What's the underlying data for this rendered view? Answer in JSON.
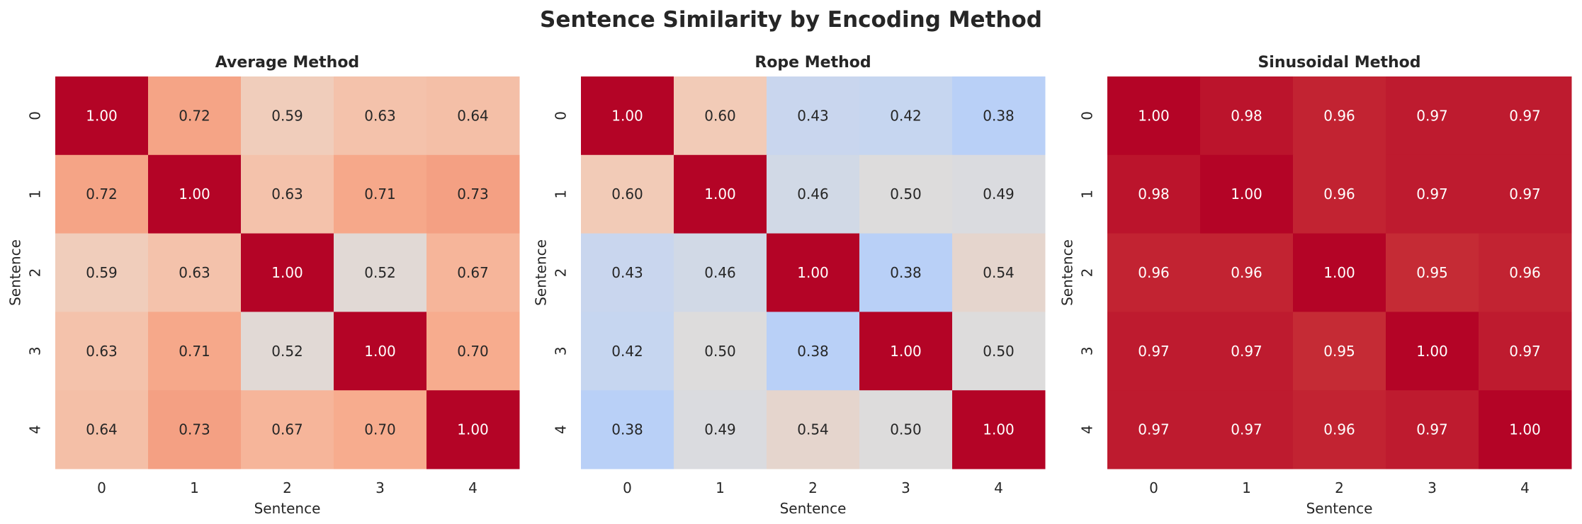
{
  "title": "Sentence Similarity by Encoding Method",
  "colormap": "coolwarm",
  "color_range": [
    0,
    1
  ],
  "chart_data": [
    {
      "type": "heatmap",
      "title": "Average Method",
      "xlabel": "Sentence",
      "ylabel": "Sentence",
      "x_ticks": [
        "0",
        "1",
        "2",
        "3",
        "4"
      ],
      "y_ticks": [
        "0",
        "1",
        "2",
        "3",
        "4"
      ],
      "values": [
        [
          1.0,
          0.72,
          0.59,
          0.63,
          0.64
        ],
        [
          0.72,
          1.0,
          0.63,
          0.71,
          0.73
        ],
        [
          0.59,
          0.63,
          1.0,
          0.52,
          0.67
        ],
        [
          0.63,
          0.71,
          0.52,
          1.0,
          0.7
        ],
        [
          0.64,
          0.73,
          0.67,
          0.7,
          1.0
        ]
      ]
    },
    {
      "type": "heatmap",
      "title": "Rope Method",
      "xlabel": "Sentence",
      "ylabel": "Sentence",
      "x_ticks": [
        "0",
        "1",
        "2",
        "3",
        "4"
      ],
      "y_ticks": [
        "0",
        "1",
        "2",
        "3",
        "4"
      ],
      "values": [
        [
          1.0,
          0.6,
          0.43,
          0.42,
          0.38
        ],
        [
          0.6,
          1.0,
          0.46,
          0.5,
          0.49
        ],
        [
          0.43,
          0.46,
          1.0,
          0.38,
          0.54
        ],
        [
          0.42,
          0.5,
          0.38,
          1.0,
          0.5
        ],
        [
          0.38,
          0.49,
          0.54,
          0.5,
          1.0
        ]
      ]
    },
    {
      "type": "heatmap",
      "title": "Sinusoidal Method",
      "xlabel": "Sentence",
      "ylabel": "Sentence",
      "x_ticks": [
        "0",
        "1",
        "2",
        "3",
        "4"
      ],
      "y_ticks": [
        "0",
        "1",
        "2",
        "3",
        "4"
      ],
      "values": [
        [
          1.0,
          0.98,
          0.96,
          0.97,
          0.97
        ],
        [
          0.98,
          1.0,
          0.96,
          0.97,
          0.97
        ],
        [
          0.96,
          0.96,
          1.0,
          0.95,
          0.96
        ],
        [
          0.97,
          0.97,
          0.95,
          1.0,
          0.97
        ],
        [
          0.97,
          0.97,
          0.96,
          0.97,
          1.0
        ]
      ]
    }
  ]
}
